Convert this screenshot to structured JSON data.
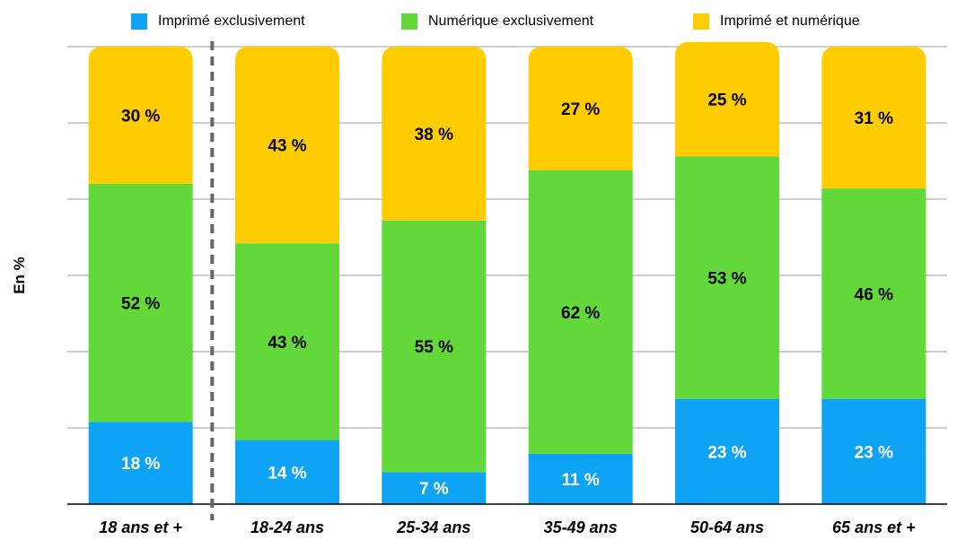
{
  "chart_data": {
    "type": "bar",
    "stacked": true,
    "ylabel": "En %",
    "xlabel": "",
    "ylim": [
      0,
      100
    ],
    "grid": true,
    "legend_position": "top",
    "categories": [
      "18 ans et +",
      "18-24 ans",
      "25-34 ans",
      "35-49 ans",
      "50-64 ans",
      "65 ans et +"
    ],
    "series": [
      {
        "name": "Imprimé exclusivement",
        "color": "#0FA3F5",
        "values": [
          18,
          14,
          7,
          11,
          23,
          23
        ],
        "labels": [
          "18 %",
          "14 %",
          "7 %",
          "11 %",
          "23 %",
          "23 %"
        ]
      },
      {
        "name": "Numérique exclusivement",
        "color": "#62D83A",
        "values": [
          52,
          43,
          55,
          62,
          53,
          46
        ],
        "labels": [
          "52 %",
          "43 %",
          "55 %",
          "62 %",
          "53 %",
          "46 %"
        ]
      },
      {
        "name": "Imprimé et numérique",
        "color": "#FFCC00",
        "values": [
          30,
          43,
          38,
          27,
          25,
          31
        ],
        "labels": [
          "30 %",
          "43 %",
          "38 %",
          "27 %",
          "25 %",
          "31 %"
        ]
      }
    ]
  }
}
